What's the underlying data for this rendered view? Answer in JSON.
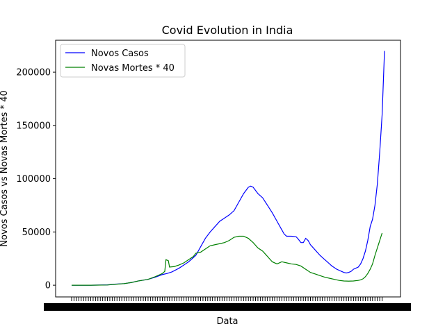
{
  "chart_data": {
    "type": "line",
    "title": "Covid Evolution in India",
    "xlabel": "Data",
    "ylabel": "Novos Casos vs Novas Mortes * 40",
    "x_tick_labels_note": "",
    "y_ticks": [
      0,
      50000,
      100000,
      150000,
      200000
    ],
    "y_tick_labels": [
      "0",
      "50000",
      "100000",
      "150000",
      "200000"
    ],
    "ylim": [
      -11000,
      230000
    ],
    "x_index_range": [
      0,
      120
    ],
    "legend_placement": "upper left",
    "series": [
      {
        "name": "Novos Casos",
        "color": "#0000ff",
        "points": [
          [
            0,
            0
          ],
          [
            8,
            0
          ],
          [
            15,
            300
          ],
          [
            18,
            1000
          ],
          [
            22,
            1500
          ],
          [
            25,
            2500
          ],
          [
            28,
            4000
          ],
          [
            32,
            5500
          ],
          [
            35,
            7500
          ],
          [
            38,
            10000
          ],
          [
            40,
            11000
          ],
          [
            42,
            12500
          ],
          [
            45,
            16000
          ],
          [
            47,
            19000
          ],
          [
            49,
            22000
          ],
          [
            52,
            28000
          ],
          [
            54,
            36000
          ],
          [
            56,
            44000
          ],
          [
            58,
            50000
          ],
          [
            60,
            55000
          ],
          [
            62,
            60000
          ],
          [
            64,
            63000
          ],
          [
            66,
            66000
          ],
          [
            68,
            70000
          ],
          [
            70,
            78000
          ],
          [
            72,
            86000
          ],
          [
            74,
            92000
          ],
          [
            75,
            93000
          ],
          [
            76,
            92000
          ],
          [
            78,
            86000
          ],
          [
            80,
            82000
          ],
          [
            82,
            75000
          ],
          [
            84,
            68000
          ],
          [
            86,
            60000
          ],
          [
            88,
            52000
          ],
          [
            89,
            48000
          ],
          [
            90,
            46000
          ],
          [
            92,
            46000
          ],
          [
            94,
            45500
          ],
          [
            95,
            43000
          ],
          [
            96,
            40000
          ],
          [
            97,
            40000
          ],
          [
            98,
            44000
          ],
          [
            99,
            42000
          ],
          [
            100,
            38000
          ],
          [
            102,
            33000
          ],
          [
            104,
            28000
          ],
          [
            106,
            24000
          ],
          [
            107,
            22000
          ],
          [
            108,
            20000
          ],
          [
            109,
            18000
          ],
          [
            110,
            16500
          ],
          [
            111,
            15000
          ],
          [
            112,
            14000
          ],
          [
            113,
            13000
          ],
          [
            114,
            12000
          ],
          [
            115,
            11500
          ],
          [
            116,
            12000
          ],
          [
            117,
            13000
          ],
          [
            118,
            15000
          ],
          [
            119,
            16000
          ],
          [
            120,
            17000
          ],
          [
            121,
            20000
          ],
          [
            122,
            25000
          ],
          [
            123,
            32000
          ],
          [
            124,
            42000
          ],
          [
            125,
            55000
          ],
          [
            126,
            62000
          ],
          [
            127,
            75000
          ],
          [
            128,
            95000
          ],
          [
            129,
            125000
          ],
          [
            130,
            160000
          ],
          [
            131,
            220000
          ]
        ]
      },
      {
        "name": "Novas Mortes * 40",
        "color": "#008000",
        "points": [
          [
            0,
            0
          ],
          [
            8,
            0
          ],
          [
            15,
            200
          ],
          [
            18,
            800
          ],
          [
            22,
            1500
          ],
          [
            25,
            2500
          ],
          [
            28,
            4000
          ],
          [
            32,
            5500
          ],
          [
            35,
            8000
          ],
          [
            37,
            10000
          ],
          [
            38,
            11000
          ],
          [
            39,
            13000
          ],
          [
            39.5,
            24000
          ],
          [
            40.5,
            23000
          ],
          [
            41,
            17000
          ],
          [
            43,
            17500
          ],
          [
            45,
            19000
          ],
          [
            47,
            21000
          ],
          [
            49,
            24000
          ],
          [
            51,
            27000
          ],
          [
            52,
            30000
          ],
          [
            54,
            31000
          ],
          [
            56,
            34000
          ],
          [
            58,
            37000
          ],
          [
            60,
            38000
          ],
          [
            62,
            39000
          ],
          [
            64,
            40000
          ],
          [
            66,
            42000
          ],
          [
            68,
            45000
          ],
          [
            70,
            46000
          ],
          [
            72,
            46000
          ],
          [
            74,
            44000
          ],
          [
            76,
            40000
          ],
          [
            78,
            35000
          ],
          [
            80,
            32000
          ],
          [
            82,
            27000
          ],
          [
            84,
            22000
          ],
          [
            86,
            20000
          ],
          [
            88,
            22000
          ],
          [
            90,
            21000
          ],
          [
            92,
            20000
          ],
          [
            94,
            19500
          ],
          [
            96,
            18000
          ],
          [
            98,
            15000
          ],
          [
            100,
            12000
          ],
          [
            102,
            10500
          ],
          [
            104,
            9000
          ],
          [
            106,
            7500
          ],
          [
            108,
            6500
          ],
          [
            110,
            5500
          ],
          [
            112,
            4500
          ],
          [
            114,
            4000
          ],
          [
            116,
            3800
          ],
          [
            118,
            4000
          ],
          [
            120,
            4500
          ],
          [
            121,
            5000
          ],
          [
            122,
            6000
          ],
          [
            123,
            8000
          ],
          [
            124,
            11000
          ],
          [
            125,
            15000
          ],
          [
            126,
            20000
          ],
          [
            127,
            28000
          ],
          [
            128,
            35000
          ],
          [
            129,
            42000
          ],
          [
            130,
            49000
          ]
        ]
      }
    ]
  }
}
